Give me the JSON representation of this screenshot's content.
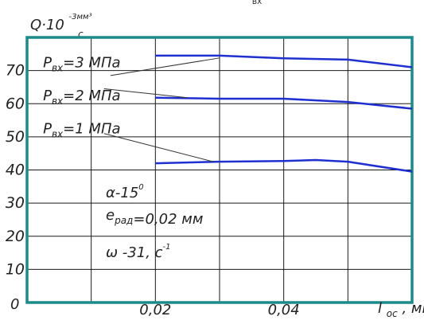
{
  "top_caption": "ВХ",
  "chart_data": {
    "type": "line",
    "ylabel": {
      "base": "Q·10",
      "exp": "-3мм³",
      "den": "с"
    },
    "xlabel": {
      "base": "l",
      "sub": "ос",
      "unit": ", мм"
    },
    "xlim": [
      0,
      0.06
    ],
    "ylim": [
      0,
      80
    ],
    "x_ticks": [
      {
        "v": 0.0,
        "label": "0"
      },
      {
        "v": 0.02,
        "label": "0,02"
      },
      {
        "v": 0.04,
        "label": "0,04"
      }
    ],
    "y_ticks": [
      {
        "v": 10,
        "label": "10"
      },
      {
        "v": 20,
        "label": "20"
      },
      {
        "v": 30,
        "label": "30"
      },
      {
        "v": 40,
        "label": "40"
      },
      {
        "v": 50,
        "label": "50"
      },
      {
        "v": 60,
        "label": "60"
      },
      {
        "v": 70,
        "label": "70"
      }
    ],
    "grid": true,
    "series": [
      {
        "name": "Pвх=3 МПа",
        "label": {
          "p": "P",
          "sub": "вх",
          "rest": "=3 МПа"
        },
        "label_pos": [
          0.002,
          71
        ],
        "leader": [
          [
            0.013,
            68.5
          ],
          [
            0.03,
            73.8
          ]
        ],
        "x": [
          0.02,
          0.03,
          0.04,
          0.05,
          0.06
        ],
        "y": [
          74.5,
          74.5,
          73.7,
          73.3,
          71.0
        ]
      },
      {
        "name": "Pвх=2 МПа",
        "label": {
          "p": "P",
          "sub": "вх",
          "rest": "=2 МПа"
        },
        "label_pos": [
          0.002,
          61
        ],
        "leader": [
          [
            0.012,
            64.5
          ],
          [
            0.025,
            61.8
          ]
        ],
        "x": [
          0.02,
          0.03,
          0.04,
          0.05,
          0.06
        ],
        "y": [
          61.8,
          61.5,
          61.5,
          60.5,
          58.5
        ]
      },
      {
        "name": "Pвх=1 МПа",
        "label": {
          "p": "P",
          "sub": "вх",
          "rest": "=1 МПа"
        },
        "label_pos": [
          0.002,
          51
        ],
        "leader": [
          [
            0.012,
            51
          ],
          [
            0.029,
            42.5
          ]
        ],
        "x": [
          0.02,
          0.03,
          0.04,
          0.045,
          0.05,
          0.06
        ],
        "y": [
          42.0,
          42.5,
          42.7,
          43.0,
          42.5,
          39.5
        ]
      }
    ],
    "annotations": [
      {
        "parts": [
          {
            "t": "α-15"
          },
          {
            "t": "0",
            "sup": true
          }
        ]
      },
      {
        "parts": [
          {
            "t": "e"
          },
          {
            "t": "рад",
            "sub": true
          },
          {
            "t": "=0,02 мм"
          }
        ]
      },
      {
        "parts": [
          {
            "t": "ω -31, с"
          },
          {
            "t": "-1",
            "sup": true
          }
        ]
      }
    ],
    "colors": {
      "frame": "#1a8a8a",
      "grid": "#1a1a1a",
      "series": "#1f2fd0",
      "leader": "#333333"
    }
  }
}
